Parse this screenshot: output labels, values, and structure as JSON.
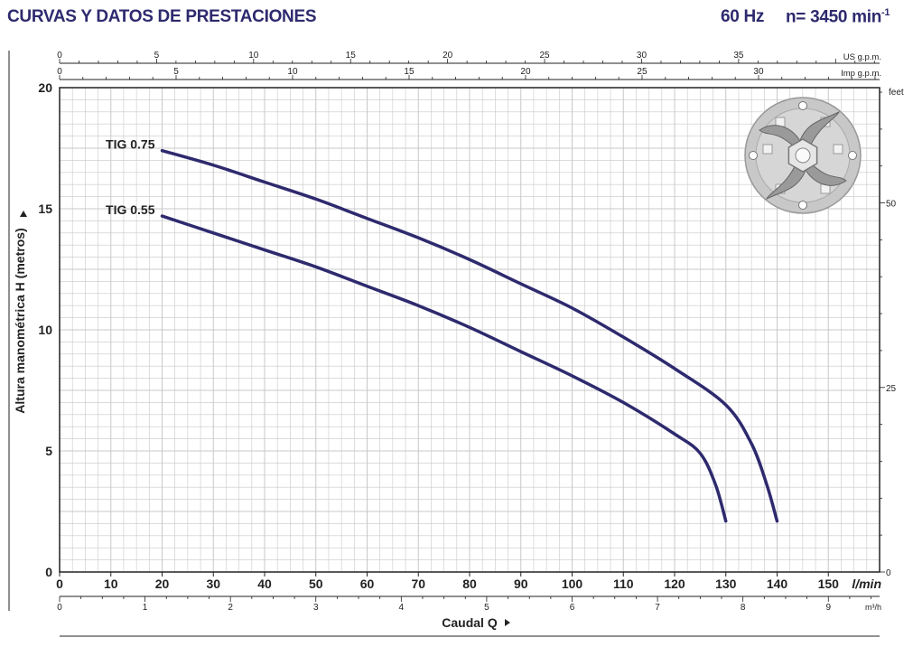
{
  "header": {
    "title": "CURVAS Y DATOS DE PRESTACIONES",
    "frequency": "60 Hz",
    "speed_prefix": "n= 3450 min",
    "speed_exp": "-1"
  },
  "colors": {
    "curve": "#2e2a6e",
    "grid": "#c8c8c8",
    "frame": "#222222"
  },
  "icon": "impeller-image",
  "chart_data": {
    "type": "line",
    "xlabel": "Caudal Q",
    "ylabel": "Altura manométrica H  (metros)",
    "xlim": [
      0,
      160
    ],
    "ylim": [
      0,
      20
    ],
    "grid": true,
    "x_unit": "l/min",
    "x_ticks": [
      0,
      10,
      20,
      30,
      40,
      50,
      60,
      70,
      80,
      90,
      100,
      110,
      120,
      130,
      140,
      150
    ],
    "y_ticks": [
      0,
      5,
      10,
      15,
      20
    ],
    "top_axes": [
      {
        "unit": "US g.p.m.",
        "ticks": [
          0,
          5,
          10,
          15,
          20,
          25,
          30,
          35
        ]
      },
      {
        "unit": "Imp g.p.m.",
        "ticks": [
          0,
          5,
          10,
          15,
          20,
          25,
          30
        ]
      }
    ],
    "bottom_axis2": {
      "unit": "m³/h",
      "ticks": [
        0,
        1,
        2,
        3,
        4,
        5,
        6,
        7,
        8,
        9
      ]
    },
    "right_axis": {
      "unit": "feet",
      "ticks": [
        0,
        25,
        50
      ]
    },
    "series": [
      {
        "name": "TIG 0.75",
        "x": [
          20,
          30,
          40,
          50,
          60,
          70,
          80,
          90,
          100,
          110,
          120,
          130,
          135,
          138,
          140
        ],
        "y": [
          17.4,
          16.8,
          16.1,
          15.4,
          14.6,
          13.8,
          12.9,
          11.9,
          10.9,
          9.7,
          8.4,
          6.9,
          5.3,
          3.6,
          2.1
        ]
      },
      {
        "name": "TIG 0.55",
        "x": [
          20,
          30,
          40,
          50,
          60,
          70,
          80,
          90,
          100,
          110,
          120,
          125,
          128,
          130
        ],
        "y": [
          14.7,
          14.0,
          13.3,
          12.6,
          11.8,
          11.0,
          10.1,
          9.1,
          8.1,
          7.0,
          5.7,
          4.9,
          3.6,
          2.1
        ]
      }
    ]
  }
}
